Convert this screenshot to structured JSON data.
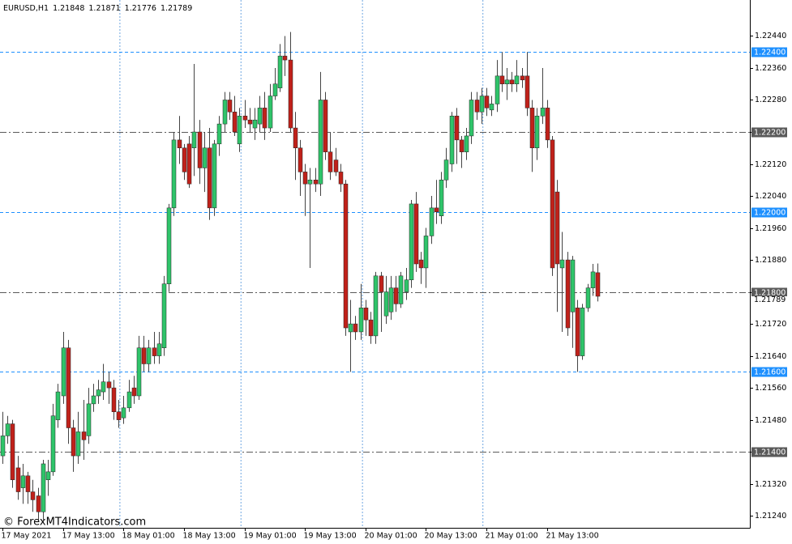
{
  "chart_data": {
    "type": "candlestick",
    "symbol": "EURUSD,H1",
    "watermark": "© ForexMT4Indicators.com",
    "categories": [
      "17 May 2021",
      null,
      null,
      null,
      null,
      null,
      null,
      null,
      null,
      null,
      null,
      null,
      "17 May 13:00",
      null,
      null,
      null,
      null,
      null,
      null,
      null,
      null,
      null,
      null,
      null,
      "18 May 01:00",
      null,
      null,
      null,
      null,
      null,
      null,
      null,
      null,
      null,
      null,
      null,
      "18 May 13:00",
      null,
      null,
      null,
      null,
      null,
      null,
      null,
      null,
      null,
      null,
      null,
      "19 May 01:00",
      null,
      null,
      null,
      null,
      null,
      null,
      null,
      null,
      null,
      null,
      null,
      "19 May 13:00",
      null,
      null,
      null,
      null,
      null,
      null,
      null,
      null,
      null,
      null,
      null,
      "20 May 01:00",
      null,
      null,
      null,
      null,
      null,
      null,
      null,
      null,
      null,
      null,
      null,
      "20 May 13:00",
      null,
      null,
      null,
      null,
      null,
      null,
      null,
      null,
      null,
      null,
      null,
      "21 May 01:00",
      null,
      null,
      null,
      null,
      null,
      null,
      null,
      null,
      null,
      null,
      null,
      "21 May 13:00",
      null,
      null,
      null,
      null,
      null,
      null,
      null,
      null,
      null,
      null
    ],
    "open": [
      1.2139,
      1.2144,
      1.2147,
      1.2136,
      1.2131,
      1.2134,
      1.213,
      1.2129,
      1.2125,
      1.2133,
      1.2135,
      1.2148,
      1.2154,
      1.2166,
      1.2146,
      1.2139,
      1.2145,
      1.2144,
      1.2152,
      1.2154,
      1.2155,
      1.21575,
      1.2156,
      1.215,
      1.21485,
      1.2151,
      1.2156,
      1.2154,
      1.2166,
      1.2162,
      1.2166,
      1.2164,
      1.2166,
      1.2182,
      1.2201,
      1.2218,
      1.2216,
      1.2217,
      1.2216,
      1.222,
      1.2211,
      1.2216,
      1.2201,
      1.2217,
      1.2222,
      1.2228,
      1.2225,
      1.2217,
      1.2224,
      1.2223,
      1.2221,
      1.2222,
      1.2226,
      1.2221,
      1.2229,
      1.2231,
      1.2239,
      1.2238,
      1.2221,
      1.2216,
      1.221,
      1.2207,
      1.2208,
      1.2207,
      1.2228,
      1.2215,
      1.2213,
      1.221,
      1.2207,
      1.217,
      1.2172,
      1.217,
      1.2176,
      1.2173,
      1.2169,
      1.2184,
      1.2174,
      1.2175,
      1.2181,
      1.2177,
      1.218,
      1.2183,
      1.2202,
      1.2188,
      1.2186,
      1.2194,
      1.2201,
      1.2199,
      1.2208,
      1.2212,
      1.2224,
      1.2218,
      1.2215,
      1.2219,
      1.2228,
      1.2225,
      1.2229,
      1.22255,
      1.2227,
      1.2234,
      1.2232,
      1.2233,
      1.2232,
      1.2234,
      1.2234,
      1.2226,
      1.2216,
      1.2224,
      1.2226,
      1.2218,
      1.2205,
      1.2186,
      1.2188,
      1.2175,
      1.2176,
      1.2164,
      1.2176,
      1.2181,
      1.21848
    ],
    "high": [
      1.215,
      1.2149,
      1.2148,
      1.2139,
      1.2137,
      1.2135,
      1.2133,
      1.2131,
      1.2138,
      1.2138,
      1.2152,
      1.2157,
      1.217,
      1.2168,
      1.2148,
      1.215,
      1.2153,
      1.2156,
      1.2157,
      1.2158,
      1.2162,
      1.216,
      1.2158,
      1.2153,
      1.2154,
      1.2158,
      1.2159,
      1.2169,
      1.2169,
      1.2168,
      1.217,
      1.217,
      1.2184,
      1.2202,
      1.222,
      1.2224,
      1.2217,
      1.2219,
      1.2237,
      1.2223,
      1.222,
      1.2221,
      1.2218,
      1.2224,
      1.223,
      1.223,
      1.2229,
      1.2226,
      1.2228,
      1.2226,
      1.2226,
      1.2229,
      1.223,
      1.2232,
      1.2236,
      1.2242,
      1.2244,
      1.2245,
      1.2225,
      1.2218,
      1.2212,
      1.2211,
      1.2211,
      1.2235,
      1.223,
      1.222,
      1.2216,
      1.2212,
      1.2208,
      1.2178,
      1.2174,
      1.2182,
      1.2178,
      1.2175,
      1.2185,
      1.2185,
      1.2184,
      1.2184,
      1.2184,
      1.2185,
      1.2186,
      1.2203,
      1.2205,
      1.219,
      1.2196,
      1.2204,
      1.2208,
      1.221,
      1.2216,
      1.2225,
      1.2226,
      1.2219,
      1.2221,
      1.223,
      1.223,
      1.2231,
      1.2231,
      1.2229,
      1.2238,
      1.224,
      1.2236,
      1.2235,
      1.2238,
      1.2236,
      1.224,
      1.2228,
      1.2226,
      1.2236,
      1.2228,
      1.2219,
      1.2208,
      1.2195,
      1.219,
      1.2189,
      1.2178,
      1.2177,
      1.2182,
      1.2187,
      1.21871
    ],
    "low": [
      1.2137,
      1.2142,
      1.2131,
      1.2128,
      1.2127,
      1.2127,
      1.2125,
      1.2123,
      1.2123,
      1.2129,
      1.2134,
      1.2146,
      1.2152,
      1.2142,
      1.2135,
      1.2137,
      1.2138,
      1.2142,
      1.215,
      1.2152,
      1.2153,
      1.2152,
      1.2148,
      1.2146,
      1.2147,
      1.215,
      1.2152,
      1.2153,
      1.216,
      1.216,
      1.2162,
      1.2162,
      1.2164,
      1.218,
      1.2199,
      1.2212,
      1.2208,
      1.2206,
      1.2209,
      1.2207,
      1.2205,
      1.2198,
      1.2199,
      1.2214,
      1.222,
      1.2223,
      1.2219,
      1.2215,
      1.2221,
      1.222,
      1.2218,
      1.222,
      1.2218,
      1.222,
      1.2228,
      1.223,
      1.2234,
      1.222,
      1.2208,
      1.2204,
      1.2199,
      1.2186,
      1.2205,
      1.2204,
      1.2213,
      1.2208,
      1.2209,
      1.2205,
      1.2169,
      1.216,
      1.2168,
      1.2168,
      1.2169,
      1.2167,
      1.2167,
      1.217,
      1.2172,
      1.2173,
      1.2175,
      1.2176,
      1.2178,
      1.2181,
      1.2185,
      1.2182,
      1.2181,
      1.2192,
      1.2197,
      1.2197,
      1.2206,
      1.221,
      1.2212,
      1.2211,
      1.2213,
      1.2217,
      1.2223,
      1.2222,
      1.2224,
      1.2224,
      1.2225,
      1.223,
      1.2228,
      1.223,
      1.223,
      1.2231,
      1.2224,
      1.221,
      1.2213,
      1.2222,
      1.2216,
      1.2184,
      1.2175,
      1.217,
      1.2169,
      1.2166,
      1.216,
      1.2163,
      1.2175,
      1.2179,
      1.21776
    ],
    "close": [
      1.2144,
      1.2147,
      1.2133,
      1.213,
      1.2134,
      1.213,
      1.2128,
      1.2125,
      1.2137,
      1.2135,
      1.2149,
      1.2155,
      1.2166,
      1.2146,
      1.2139,
      1.2145,
      1.2143,
      1.2152,
      1.2154,
      1.21555,
      1.21575,
      1.2156,
      1.215,
      1.2148,
      1.2151,
      1.2155,
      1.2154,
      1.2166,
      1.2162,
      1.2166,
      1.2164,
      1.2167,
      1.2182,
      1.2201,
      1.2218,
      1.2216,
      1.221,
      1.2207,
      1.222,
      1.2211,
      1.2216,
      1.2201,
      1.2217,
      1.2222,
      1.2228,
      1.2225,
      1.222,
      1.2224,
      1.2223,
      1.2222,
      1.2223,
      1.2226,
      1.2221,
      1.2229,
      1.2232,
      1.2239,
      1.2238,
      1.2221,
      1.2216,
      1.221,
      1.2207,
      1.2208,
      1.2207,
      1.2228,
      1.2215,
      1.221,
      1.221,
      1.2207,
      1.2171,
      1.2172,
      1.217,
      1.2176,
      1.2173,
      1.2169,
      1.2184,
      1.218,
      1.218,
      1.2181,
      1.2177,
      1.2184,
      1.2183,
      1.2202,
      1.2187,
      1.2186,
      1.2194,
      1.2201,
      1.22,
      1.2208,
      1.2213,
      1.2224,
      1.2218,
      1.2215,
      1.2219,
      1.2228,
      1.2225,
      1.2229,
      1.2226,
      1.2227,
      1.2234,
      1.2232,
      1.2233,
      1.2232,
      1.2234,
      1.2233,
      1.2226,
      1.2216,
      1.2224,
      1.2226,
      1.2218,
      1.2186,
      1.2187,
      1.2188,
      1.2171,
      1.2188,
      1.2164,
      1.2176,
      1.2181,
      1.2185,
      1.21789
    ],
    "up_color": "#2fc46a",
    "down_color": "#c0211a",
    "ylim": [
      1.2121,
      1.2253
    ],
    "yticks": [
      {
        "value": 1.2244,
        "label": "1.22440"
      },
      {
        "value": 1.2236,
        "label": "1.22360"
      },
      {
        "value": 1.2228,
        "label": "1.22280"
      },
      {
        "value": 1.222,
        "label": "1.22200"
      },
      {
        "value": 1.2212,
        "label": "1.22120"
      },
      {
        "value": 1.2204,
        "label": "1.22040"
      },
      {
        "value": 1.2196,
        "label": "1.21960"
      },
      {
        "value": 1.2188,
        "label": "1.21880"
      },
      {
        "value": 1.218,
        "label": "1.21800"
      },
      {
        "value": 1.2172,
        "label": "1.21720"
      },
      {
        "value": 1.2164,
        "label": "1.21640"
      },
      {
        "value": 1.2156,
        "label": "1.21560"
      },
      {
        "value": 1.2148,
        "label": "1.21480"
      },
      {
        "value": 1.214,
        "label": "1.21400"
      },
      {
        "value": 1.2132,
        "label": "1.21320"
      },
      {
        "value": 1.2124,
        "label": "1.21240"
      }
    ],
    "levels": [
      {
        "value": 1.224,
        "label": "1.22400",
        "color": "#1e90ff"
      },
      {
        "value": 1.222,
        "label": "1.22200",
        "color": "#5a5a5a"
      },
      {
        "value": 1.22,
        "label": "1.22000",
        "color": "#1e90ff"
      },
      {
        "value": 1.218,
        "label": "1.21800",
        "color": "#5a5a5a"
      },
      {
        "value": 1.216,
        "label": "1.21600",
        "color": "#1e90ff"
      },
      {
        "value": 1.214,
        "label": "1.21400",
        "color": "#5a5a5a"
      }
    ]
  }
}
